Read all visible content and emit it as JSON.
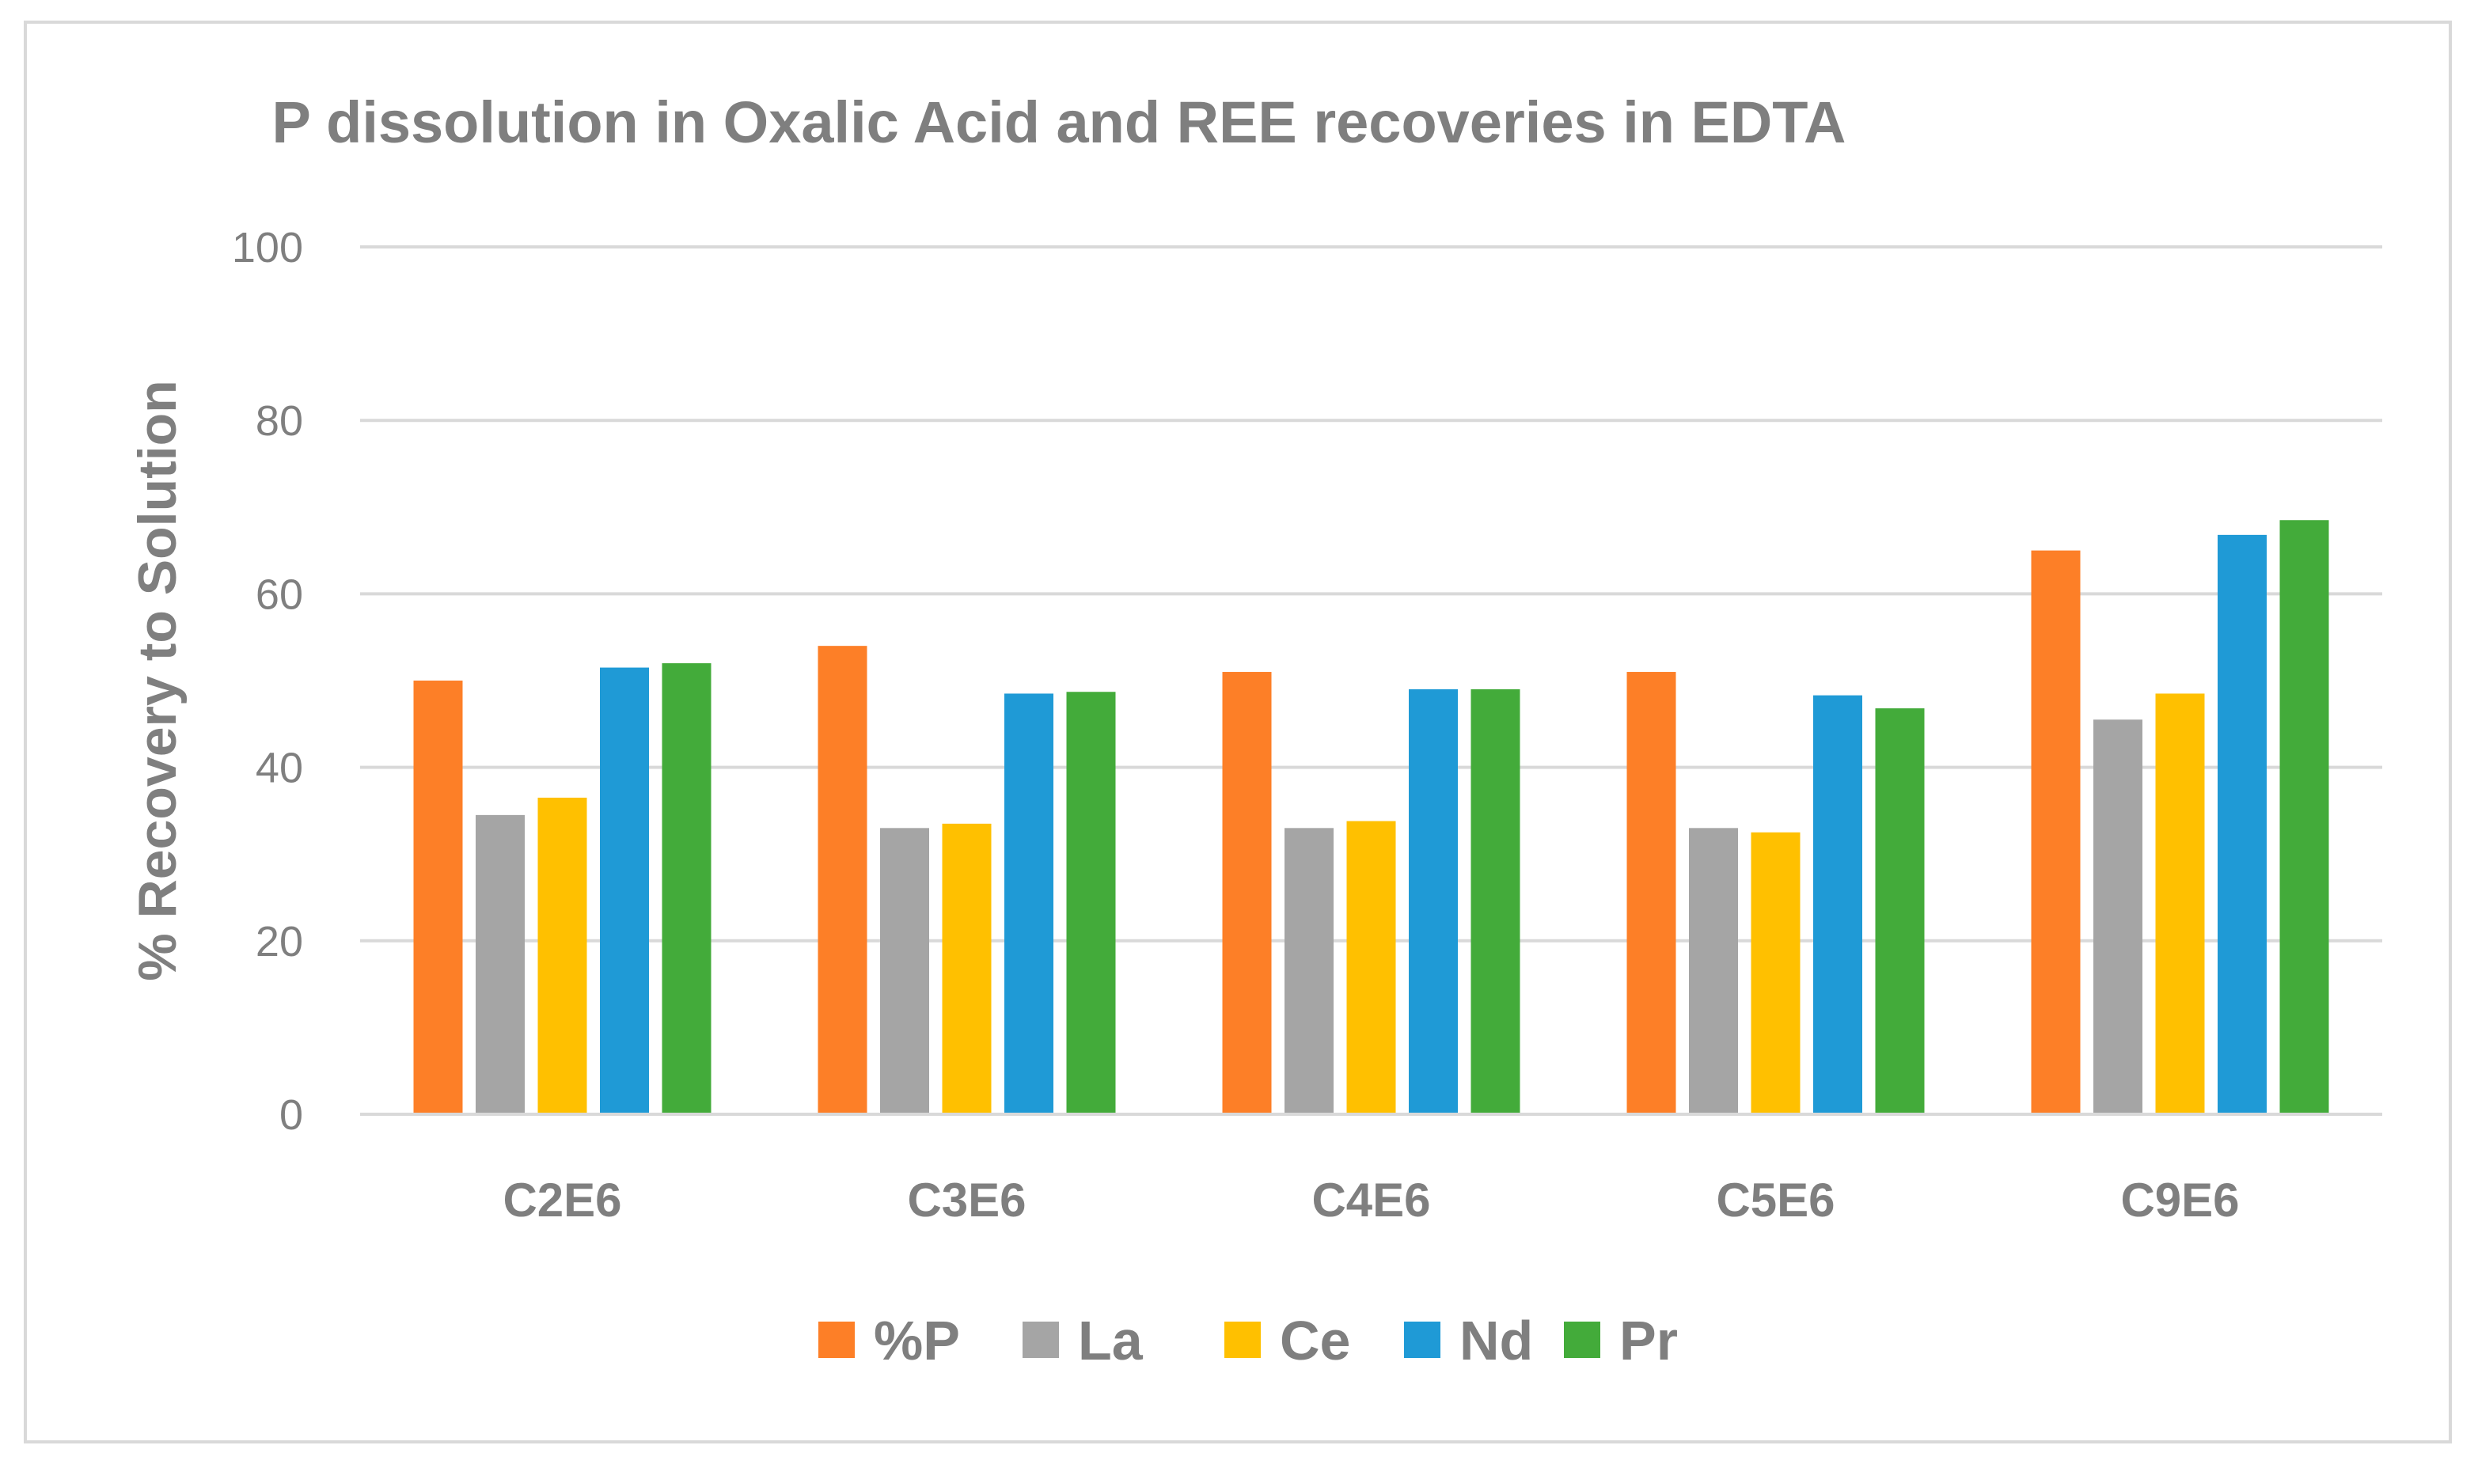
{
  "chart_data": {
    "type": "bar",
    "title": "P dissolution in Oxalic Acid and REE recoveries in EDTA",
    "xlabel": "",
    "ylabel": "% Recovery to Solution",
    "ylim": [
      0,
      100
    ],
    "yticks": [
      0,
      20,
      40,
      60,
      80,
      100
    ],
    "grid": true,
    "legend_position": "bottom",
    "categories": [
      "C2E6",
      "C3E6",
      "C4E6",
      "C5E6",
      "C9E6"
    ],
    "series": [
      {
        "name": "%P",
        "color": "#fd7f27",
        "values": [
          50,
          54,
          51,
          51,
          65
        ]
      },
      {
        "name": "La",
        "color": "#a5a5a5",
        "values": [
          34.5,
          33,
          33,
          33,
          45.5
        ]
      },
      {
        "name": "Ce",
        "color": "#ffc000",
        "values": [
          36.5,
          33.5,
          33.8,
          32.5,
          48.5
        ]
      },
      {
        "name": "Nd",
        "color": "#1f9ad6",
        "values": [
          51.5,
          48.5,
          49,
          48.3,
          66.8
        ]
      },
      {
        "name": "Pr",
        "color": "#43ab3a",
        "values": [
          52,
          48.7,
          49,
          46.8,
          68.5
        ]
      }
    ]
  }
}
